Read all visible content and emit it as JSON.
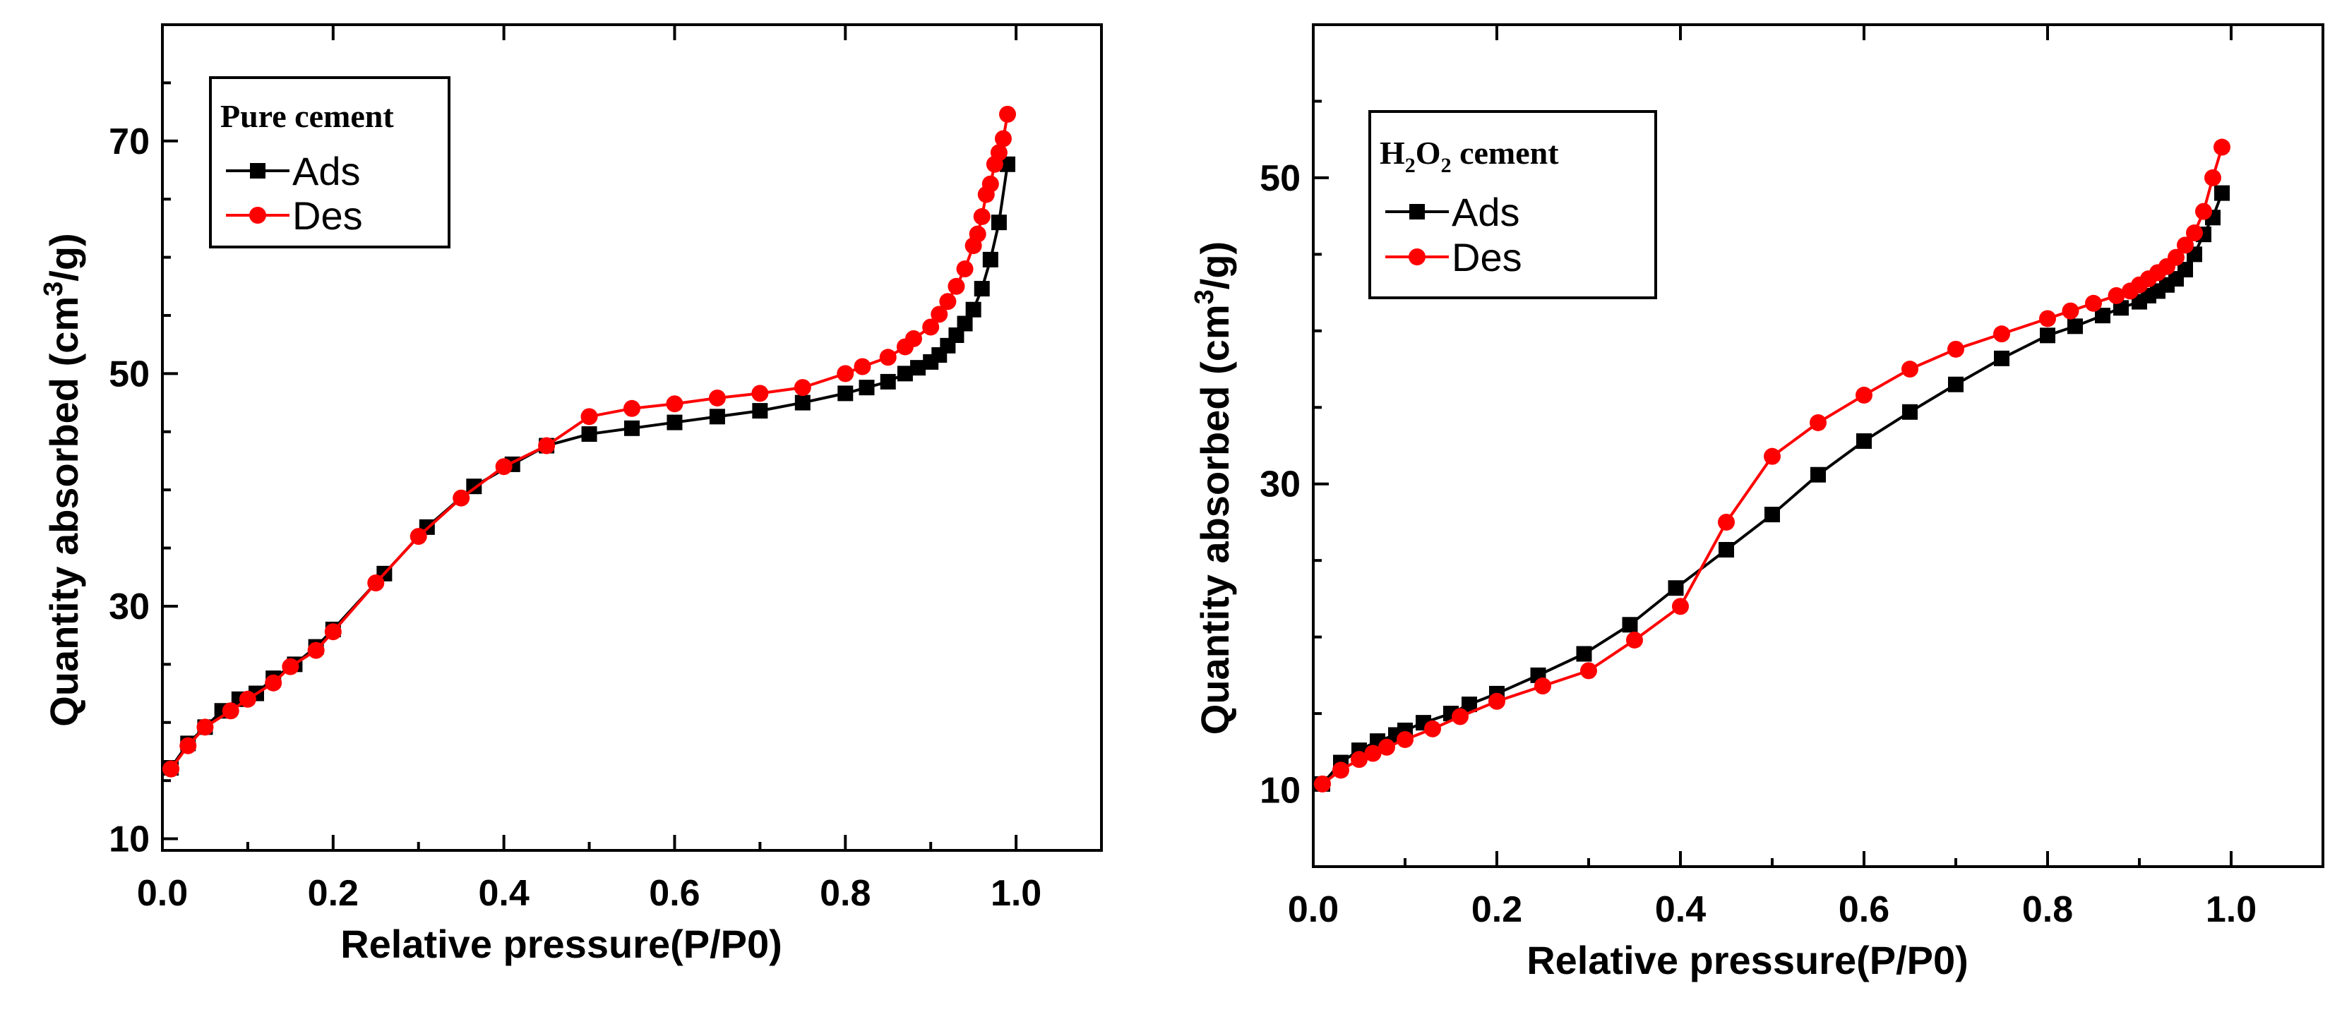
{
  "colors": {
    "ads": "#000000",
    "des": "#ff0000"
  },
  "chart_data": [
    {
      "type": "line",
      "legend_title": "Pure cement",
      "legend_title_parts": [],
      "xlabel": "Relative pressure(P/P0)",
      "ylabel_prefix": "Quantity absorbed (cm",
      "ylabel_sup": "3",
      "ylabel_suffix": "/g)",
      "xlim": [
        0.0,
        1.1
      ],
      "ylim": [
        9,
        80
      ],
      "xticks": [
        0.0,
        0.2,
        0.4,
        0.6,
        0.8,
        1.0
      ],
      "xtick_labels": [
        "0.0",
        "0.2",
        "0.4",
        "0.6",
        "0.8",
        "1.0"
      ],
      "yticks": [
        10,
        30,
        50,
        70
      ],
      "ytick_labels": [
        "10",
        "30",
        "50",
        "70"
      ],
      "series": [
        {
          "name": "Ads",
          "marker": "square",
          "x": [
            0.01,
            0.03,
            0.05,
            0.07,
            0.09,
            0.11,
            0.13,
            0.155,
            0.18,
            0.2,
            0.26,
            0.31,
            0.365,
            0.41,
            0.45,
            0.5,
            0.55,
            0.6,
            0.65,
            0.7,
            0.75,
            0.8,
            0.825,
            0.85,
            0.87,
            0.885,
            0.9,
            0.91,
            0.92,
            0.93,
            0.94,
            0.95,
            0.96,
            0.97,
            0.98,
            0.99
          ],
          "y": [
            16.1,
            18.2,
            19.6,
            21.0,
            22.0,
            22.5,
            23.8,
            25.0,
            26.5,
            28.0,
            32.8,
            36.8,
            40.3,
            42.2,
            43.8,
            44.8,
            45.3,
            45.8,
            46.3,
            46.8,
            47.5,
            48.3,
            48.8,
            49.3,
            50.0,
            50.5,
            51.0,
            51.6,
            52.4,
            53.3,
            54.3,
            55.5,
            57.3,
            59.8,
            63.0,
            68.0
          ]
        },
        {
          "name": "Des",
          "marker": "circle",
          "x": [
            0.01,
            0.03,
            0.05,
            0.08,
            0.1,
            0.13,
            0.15,
            0.18,
            0.2,
            0.25,
            0.3,
            0.35,
            0.4,
            0.45,
            0.5,
            0.55,
            0.6,
            0.65,
            0.7,
            0.75,
            0.8,
            0.82,
            0.85,
            0.87,
            0.88,
            0.9,
            0.91,
            0.92,
            0.93,
            0.94,
            0.95,
            0.955,
            0.96,
            0.965,
            0.97,
            0.975,
            0.98,
            0.985,
            0.99
          ],
          "y": [
            16.0,
            18.0,
            19.6,
            21.0,
            22.0,
            23.4,
            24.8,
            26.2,
            27.8,
            32.0,
            36.0,
            39.3,
            42.0,
            43.8,
            46.3,
            47.0,
            47.4,
            47.9,
            48.3,
            48.8,
            50.0,
            50.6,
            51.4,
            52.3,
            53.0,
            54.0,
            55.1,
            56.2,
            57.5,
            59.0,
            61.0,
            62.0,
            63.5,
            65.4,
            66.3,
            68.0,
            69.0,
            70.2,
            72.3
          ]
        }
      ]
    },
    {
      "type": "line",
      "legend_title": "H2O2 cement",
      "legend_title_parts": [
        "H",
        "2",
        "O",
        "2",
        " cement"
      ],
      "xlabel": "Relative pressure(P/P0)",
      "ylabel_prefix": "Quantity absorbed (cm",
      "ylabel_sup": "3",
      "ylabel_suffix": "/g)",
      "xlim": [
        0.0,
        1.1
      ],
      "ylim": [
        5,
        60
      ],
      "xticks": [
        0.0,
        0.2,
        0.4,
        0.6,
        0.8,
        1.0
      ],
      "xtick_labels": [
        "0.0",
        "0.2",
        "0.4",
        "0.6",
        "0.8",
        "1.0"
      ],
      "yticks": [
        10,
        30,
        50
      ],
      "ytick_labels": [
        "10",
        "30",
        "50"
      ],
      "series": [
        {
          "name": "Ads",
          "marker": "square",
          "x": [
            0.01,
            0.03,
            0.05,
            0.07,
            0.09,
            0.1,
            0.12,
            0.15,
            0.17,
            0.2,
            0.245,
            0.295,
            0.345,
            0.395,
            0.45,
            0.5,
            0.55,
            0.6,
            0.65,
            0.7,
            0.75,
            0.8,
            0.83,
            0.86,
            0.88,
            0.9,
            0.91,
            0.92,
            0.93,
            0.94,
            0.95,
            0.96,
            0.97,
            0.98,
            0.99
          ],
          "y": [
            10.4,
            11.8,
            12.6,
            13.2,
            13.6,
            13.9,
            14.4,
            15.0,
            15.6,
            16.3,
            17.5,
            18.9,
            20.8,
            23.2,
            25.7,
            28.0,
            30.6,
            32.8,
            34.7,
            36.5,
            38.2,
            39.7,
            40.3,
            41.0,
            41.5,
            41.9,
            42.3,
            42.6,
            43.0,
            43.4,
            44.0,
            45.0,
            46.3,
            47.4,
            49.0
          ]
        },
        {
          "name": "Des",
          "marker": "circle",
          "x": [
            0.01,
            0.03,
            0.05,
            0.065,
            0.08,
            0.1,
            0.13,
            0.16,
            0.2,
            0.25,
            0.3,
            0.35,
            0.4,
            0.45,
            0.5,
            0.55,
            0.6,
            0.65,
            0.7,
            0.75,
            0.8,
            0.825,
            0.85,
            0.875,
            0.89,
            0.9,
            0.91,
            0.92,
            0.93,
            0.94,
            0.95,
            0.96,
            0.97,
            0.98,
            0.99
          ],
          "y": [
            10.4,
            11.3,
            12.0,
            12.4,
            12.8,
            13.3,
            14.0,
            14.8,
            15.8,
            16.8,
            17.8,
            19.8,
            22.0,
            27.5,
            31.8,
            34.0,
            35.8,
            37.5,
            38.8,
            39.8,
            40.8,
            41.3,
            41.8,
            42.3,
            42.6,
            43.0,
            43.4,
            43.8,
            44.2,
            44.8,
            45.6,
            46.4,
            47.8,
            50.0,
            52.0
          ]
        }
      ]
    }
  ]
}
